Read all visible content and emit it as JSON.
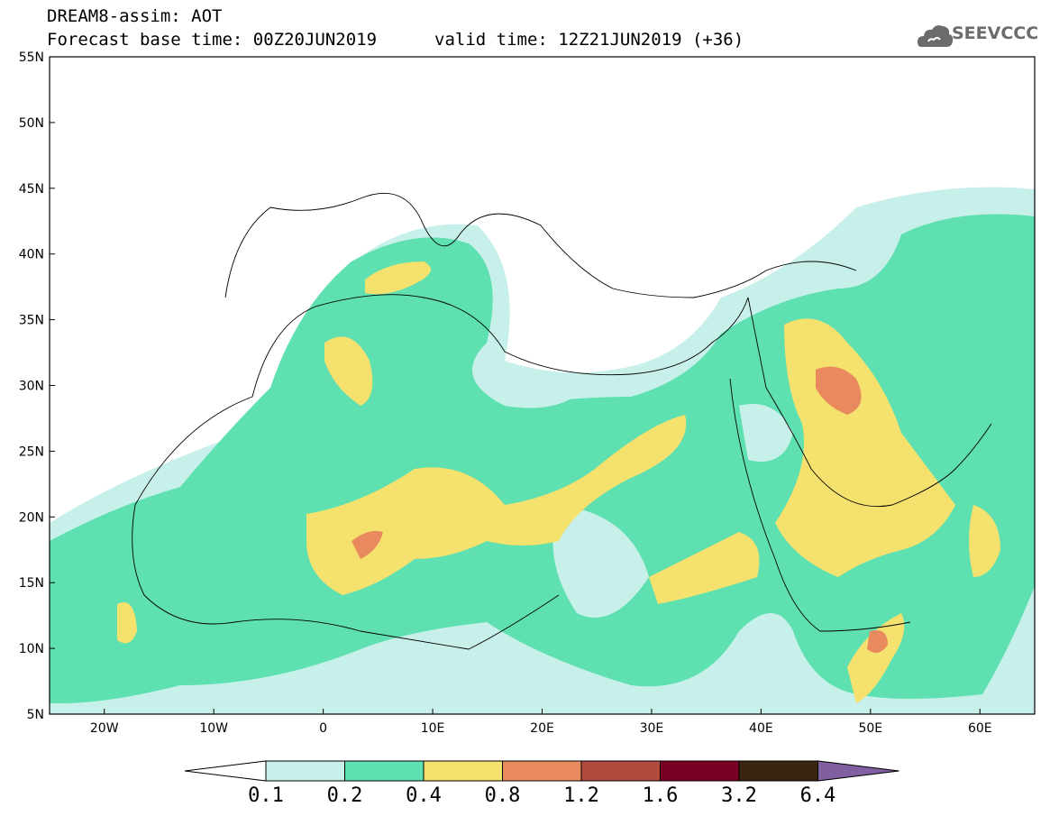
{
  "header": {
    "title_line1": "DREAM8-assim: AOT",
    "title_line2": "Forecast base time: 00Z20JUN2019",
    "valid_time": "valid time: 12Z21JUN2019 (+36)",
    "logo_text": "SEEVCCC"
  },
  "map": {
    "lat_labels": [
      "55N",
      "50N",
      "45N",
      "40N",
      "35N",
      "30N",
      "25N",
      "20N",
      "15N",
      "10N",
      "5N"
    ],
    "lon_labels": [
      "20W",
      "10W",
      "0",
      "10E",
      "20E",
      "30E",
      "40E",
      "50E",
      "60E"
    ],
    "extent": {
      "lon_min": -25,
      "lon_max": 65,
      "lat_min": 5,
      "lat_max": 55
    }
  },
  "colorbar": {
    "labels": [
      "0.1",
      "0.2",
      "0.4",
      "0.8",
      "1.2",
      "1.6",
      "3.2",
      "6.4"
    ],
    "colors": [
      "#ffffff",
      "#c8f0ea",
      "#5fe0b0",
      "#f5e16e",
      "#e88a5e",
      "#b04a3c",
      "#7a0024",
      "#3b2410",
      "#8060a0"
    ]
  }
}
